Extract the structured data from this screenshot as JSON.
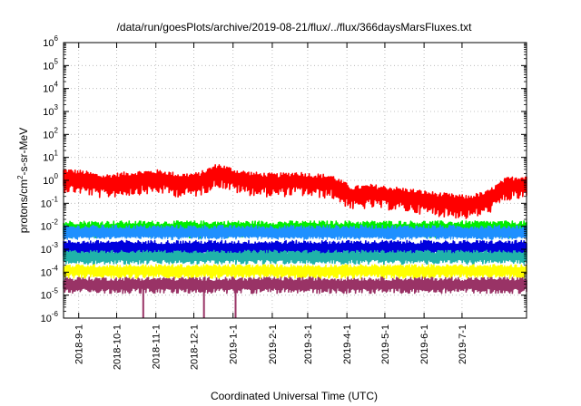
{
  "chart_data": {
    "type": "line",
    "title": "/data/run/goesPlots/archive/2019-08-21/flux/../flux/366daysMarsFluxes.txt",
    "xlabel": "Coordinated Universal Time (UTC)",
    "ylabel": "protons/cm²-s-sr-MeV",
    "yscale": "log",
    "ylim": [
      1e-06,
      1000000.0
    ],
    "xlim": [
      "2018-08-20",
      "2019-08-21"
    ],
    "grid": true,
    "legend": "none",
    "y_ticks": [
      {
        "value": 1e-06,
        "base": "10",
        "exp": "-6"
      },
      {
        "value": 1e-05,
        "base": "10",
        "exp": "-5"
      },
      {
        "value": 0.0001,
        "base": "10",
        "exp": "-4"
      },
      {
        "value": 0.001,
        "base": "10",
        "exp": "-3"
      },
      {
        "value": 0.01,
        "base": "10",
        "exp": "-2"
      },
      {
        "value": 0.1,
        "base": "10",
        "exp": "-1"
      },
      {
        "value": 1,
        "base": "10",
        "exp": "0"
      },
      {
        "value": 10.0,
        "base": "10",
        "exp": "1"
      },
      {
        "value": 100.0,
        "base": "10",
        "exp": "2"
      },
      {
        "value": 1000.0,
        "base": "10",
        "exp": "3"
      },
      {
        "value": 10000.0,
        "base": "10",
        "exp": "4"
      },
      {
        "value": 100000.0,
        "base": "10",
        "exp": "5"
      },
      {
        "value": 1000000.0,
        "base": "10",
        "exp": "6"
      }
    ],
    "x_ticks": [
      {
        "date": "2018-09-01",
        "label": "2018-9-1"
      },
      {
        "date": "2018-10-01",
        "label": "2018-10-1"
      },
      {
        "date": "2018-11-01",
        "label": "2018-11-1"
      },
      {
        "date": "2018-12-01",
        "label": "2018-12-1"
      },
      {
        "date": "2019-01-01",
        "label": "2019-1-1"
      },
      {
        "date": "2019-02-01",
        "label": "2019-2-1"
      },
      {
        "date": "2019-03-01",
        "label": "2019-3-1"
      },
      {
        "date": "2019-04-01",
        "label": "2019-4-1"
      },
      {
        "date": "2019-05-01",
        "label": "2019-5-1"
      },
      {
        "date": "2019-06-01",
        "label": "2019-6-1"
      },
      {
        "date": "2019-07-01",
        "label": "2019-7-1"
      }
    ],
    "series": [
      {
        "color": "#ff0000",
        "x": [
          "2018-08-20",
          "2018-09-05",
          "2018-09-20",
          "2018-10-05",
          "2018-10-20",
          "2018-11-05",
          "2018-11-20",
          "2018-12-05",
          "2018-12-20",
          "2019-01-05",
          "2019-01-20",
          "2019-02-05",
          "2019-02-20",
          "2019-03-05",
          "2019-03-20",
          "2019-04-05",
          "2019-04-20",
          "2019-05-05",
          "2019-05-20",
          "2019-06-05",
          "2019-06-20",
          "2019-07-05",
          "2019-07-20",
          "2019-08-05",
          "2019-08-21"
        ],
        "y": [
          1.5,
          1.2,
          0.8,
          1.0,
          1.2,
          1.3,
          0.9,
          1.0,
          2.5,
          1.3,
          1.0,
          0.9,
          1.1,
          0.9,
          0.8,
          0.25,
          0.3,
          0.25,
          0.2,
          0.15,
          0.12,
          0.1,
          0.15,
          0.6,
          0.8
        ],
        "spread": [
          0.35,
          0.7
        ]
      },
      {
        "color": "#00ee00",
        "x": [
          "2018-08-20",
          "2019-08-21"
        ],
        "y": [
          0.0085,
          0.0085
        ],
        "spread": [
          0.3,
          0.45
        ]
      },
      {
        "color": "#1e90ff",
        "x": [
          "2018-08-20",
          "2019-08-21"
        ],
        "y": [
          0.0055,
          0.0055
        ],
        "spread": [
          0.3,
          0.4
        ]
      },
      {
        "color": "#ffffff",
        "x": [
          "2018-08-20",
          "2019-08-21"
        ],
        "y": [
          0.0018,
          0.0018
        ],
        "spread": [
          0.25,
          0.3
        ]
      },
      {
        "color": "#0000dd",
        "x": [
          "2018-08-20",
          "2019-08-21"
        ],
        "y": [
          0.0012,
          0.0012
        ],
        "spread": [
          0.3,
          0.4
        ]
      },
      {
        "color": "#20b2aa",
        "x": [
          "2018-08-20",
          "2019-08-21"
        ],
        "y": [
          0.0005,
          0.0005
        ],
        "spread": [
          0.25,
          0.35
        ]
      },
      {
        "color": "#ffff00",
        "x": [
          "2018-08-20",
          "2019-08-21"
        ],
        "y": [
          0.00012,
          0.00012
        ],
        "spread": [
          0.25,
          0.35
        ]
      },
      {
        "color": "#993366",
        "x": [
          "2018-08-20",
          "2019-08-21"
        ],
        "y": [
          3e-05,
          3e-05
        ],
        "spread": [
          0.3,
          0.4
        ]
      }
    ]
  }
}
